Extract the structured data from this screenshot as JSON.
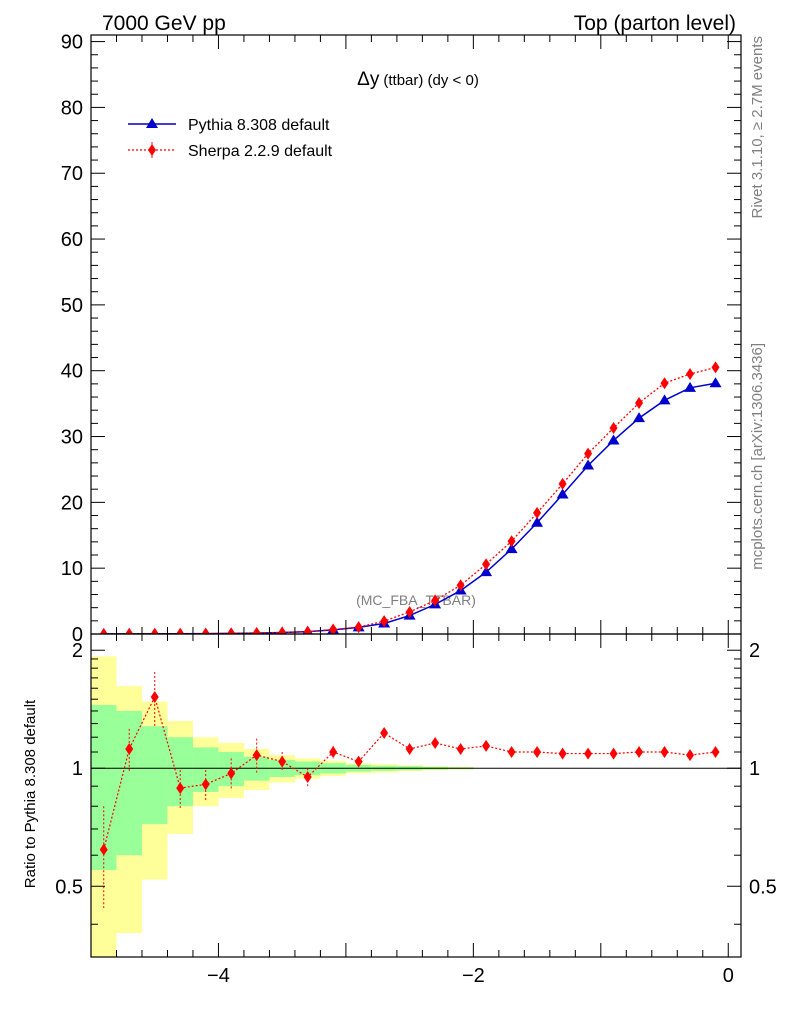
{
  "header": {
    "left": "7000 GeV pp",
    "right": "Top (parton level)"
  },
  "side_labels": {
    "rivet": "Rivet 3.1.10, ≥ 2.7M events",
    "source": "mcplots.cern.ch [arXiv:1306.3436]"
  },
  "chart_data": [
    {
      "type": "line",
      "title": "Δy (ttbar) (dy < 0)",
      "title_main": "Δy",
      "title_sub": "(ttbar) (dy < 0)",
      "watermark": "(MC_FBA_TTBAR)",
      "xlim": [
        -5.0,
        0.1
      ],
      "ylim": [
        0,
        91
      ],
      "y_ticks": [
        0,
        10,
        20,
        30,
        40,
        50,
        60,
        70,
        80,
        90
      ],
      "legend": "top-left",
      "x": [
        -4.9,
        -4.7,
        -4.5,
        -4.3,
        -4.1,
        -3.9,
        -3.7,
        -3.5,
        -3.3,
        -3.1,
        -2.9,
        -2.7,
        -2.5,
        -2.3,
        -2.1,
        -1.9,
        -1.7,
        -1.5,
        -1.3,
        -1.1,
        -0.9,
        -0.7,
        -0.5,
        -0.3,
        -0.1
      ],
      "series": [
        {
          "name": "Pythia 8.308 default",
          "color": "#0000cc",
          "marker": "triangle",
          "line": "solid",
          "values": [
            0.01,
            0.02,
            0.03,
            0.04,
            0.06,
            0.09,
            0.14,
            0.22,
            0.37,
            0.62,
            1.0,
            1.6,
            2.8,
            4.5,
            6.6,
            9.4,
            12.9,
            16.9,
            21.2,
            25.6,
            29.4,
            32.8,
            35.5,
            37.4,
            38.1
          ]
        },
        {
          "name": "Sherpa 2.2.9 default",
          "color": "#ff0000",
          "marker": "diamond",
          "line": "dotted",
          "values": [
            0.006,
            0.02,
            0.045,
            0.035,
            0.055,
            0.095,
            0.15,
            0.23,
            0.35,
            0.68,
            1.05,
            1.95,
            3.35,
            5.1,
            7.4,
            10.6,
            14.1,
            18.4,
            22.8,
            27.4,
            31.3,
            35.1,
            38.1,
            39.5,
            40.5
          ]
        }
      ]
    },
    {
      "type": "line",
      "ylabel": "Ratio to Pythia 8.308 default",
      "xlim": [
        -5.0,
        0.1
      ],
      "ylim": [
        0.33,
        2.2
      ],
      "x_ticks": [
        -4,
        -2,
        0
      ],
      "y_ticks": [
        0.5,
        1,
        2
      ],
      "reference": 1,
      "x": [
        -4.9,
        -4.7,
        -4.5,
        -4.3,
        -4.1,
        -3.9,
        -3.7,
        -3.5,
        -3.3,
        -3.1,
        -2.9,
        -2.7,
        -2.5,
        -2.3,
        -2.1,
        -1.9,
        -1.7,
        -1.5,
        -1.3,
        -1.1,
        -0.9,
        -0.7,
        -0.5,
        -0.3,
        -0.1
      ],
      "bands": {
        "inner_color": "#99ff99",
        "outer_color": "#ffff99",
        "edges": [
          -5.0,
          -4.8,
          -4.6,
          -4.4,
          -4.2,
          -4.0,
          -3.8,
          -3.6,
          -3.4,
          -3.2,
          -3.0,
          -2.8,
          -2.6,
          -2.4,
          -2.2,
          -2.0
        ],
        "inner_half_width": [
          0.45,
          0.4,
          0.28,
          0.2,
          0.13,
          0.1,
          0.07,
          0.05,
          0.04,
          0.03,
          0.02,
          0.015,
          0.012,
          0.008,
          0.005
        ],
        "outer_half_width": [
          0.93,
          0.62,
          0.48,
          0.32,
          0.2,
          0.16,
          0.12,
          0.08,
          0.06,
          0.045,
          0.03,
          0.025,
          0.018,
          0.012,
          0.008
        ]
      },
      "series": [
        {
          "name": "Sherpa 2.2.9 default",
          "color": "#ff0000",
          "marker": "diamond",
          "values": [
            0.62,
            1.12,
            1.52,
            0.89,
            0.91,
            0.97,
            1.08,
            1.04,
            0.95,
            1.1,
            1.04,
            1.23,
            1.12,
            1.16,
            1.12,
            1.14,
            1.1,
            1.1,
            1.09,
            1.09,
            1.09,
            1.1,
            1.1,
            1.08,
            1.1
          ],
          "err": [
            0.18,
            0.14,
            0.24,
            0.1,
            0.08,
            0.09,
            0.11,
            0.06,
            0.05,
            0.04,
            0.03,
            0.02,
            0.015,
            0.012,
            0.01,
            0.01,
            0.008,
            0.006,
            0.006,
            0.005,
            0.005,
            0.004,
            0.004,
            0.004,
            0.004
          ]
        }
      ]
    }
  ]
}
